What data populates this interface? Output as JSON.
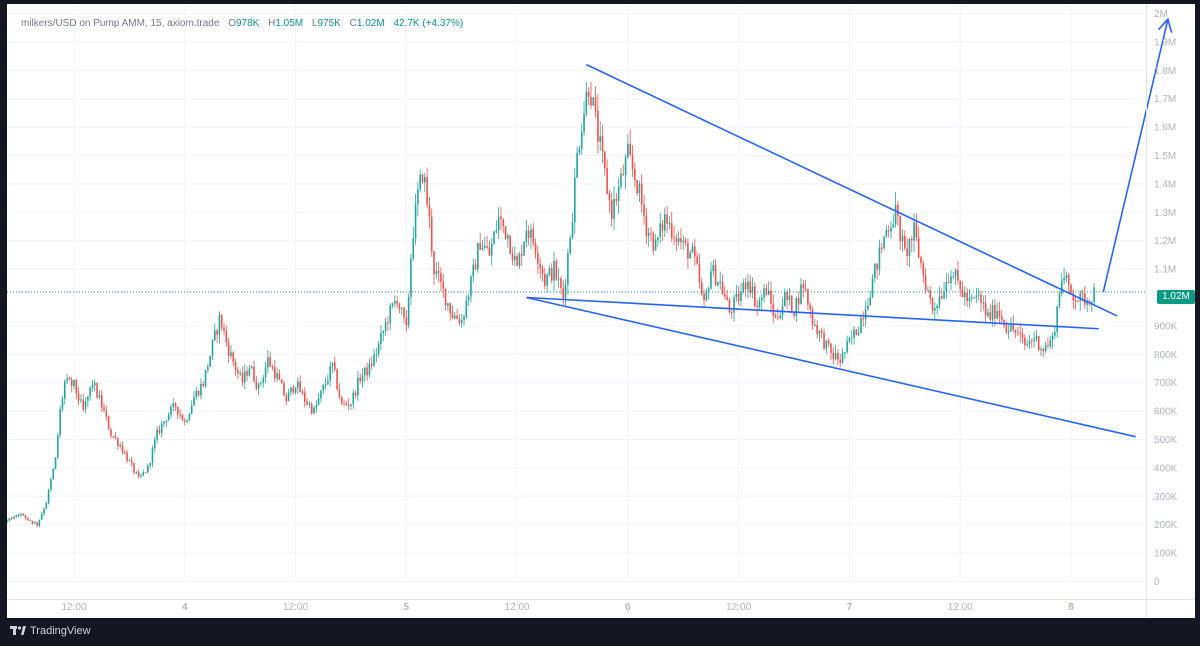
{
  "header": {
    "symbol": "milkers/USD on Pump AMM, 15, axiom.trade",
    "open_key": "O",
    "open_val": "978K",
    "high_key": "H",
    "high_val": "1.05M",
    "low_key": "L",
    "low_val": "975K",
    "close_key": "C",
    "close_val": "1.02M",
    "change": "42.7K (+4.37%)"
  },
  "current_price_label": "1.02M",
  "footer": {
    "brand": "TradingView"
  },
  "colors": {
    "up": "#26a69a",
    "down": "#ef5350",
    "trendline": "#2962ff",
    "price_line": "#0a9b82",
    "grid": "#f0f3fa",
    "axis_text": "#b2b5be"
  },
  "chart_data": {
    "type": "candlestick",
    "y_unit": "USD",
    "ylim": [
      0,
      2000000
    ],
    "y_ticks": [
      {
        "value": 2000000,
        "label": "2M"
      },
      {
        "value": 1900000,
        "label": "1.9M"
      },
      {
        "value": 1800000,
        "label": "1.8M"
      },
      {
        "value": 1700000,
        "label": "1.7M"
      },
      {
        "value": 1600000,
        "label": "1.6M"
      },
      {
        "value": 1500000,
        "label": "1.5M"
      },
      {
        "value": 1400000,
        "label": "1.4M"
      },
      {
        "value": 1300000,
        "label": "1.3M"
      },
      {
        "value": 1200000,
        "label": "1.2M"
      },
      {
        "value": 1100000,
        "label": "1.1M"
      },
      {
        "value": 900000,
        "label": "900K"
      },
      {
        "value": 800000,
        "label": "800K"
      },
      {
        "value": 700000,
        "label": "700K"
      },
      {
        "value": 600000,
        "label": "600K"
      },
      {
        "value": 500000,
        "label": "500K"
      },
      {
        "value": 400000,
        "label": "400K"
      },
      {
        "value": 300000,
        "label": "300K"
      },
      {
        "value": 200000,
        "label": "200K"
      },
      {
        "value": 100000,
        "label": "100K"
      },
      {
        "value": 0,
        "label": "0"
      }
    ],
    "x_range_hours": [
      -18,
      114
    ],
    "x_ticks": [
      {
        "hour": -12,
        "label": ":00"
      },
      {
        "hour": 0,
        "label": "12:00"
      },
      {
        "hour": 12,
        "label": "4"
      },
      {
        "hour": 24,
        "label": "12:00"
      },
      {
        "hour": 36,
        "label": "5"
      },
      {
        "hour": 48,
        "label": "12:00"
      },
      {
        "hour": 60,
        "label": "6"
      },
      {
        "hour": 72,
        "label": "12:00"
      },
      {
        "hour": 84,
        "label": "7"
      },
      {
        "hour": 96,
        "label": "12:00"
      },
      {
        "hour": 108,
        "label": "8"
      }
    ],
    "current_price": 1020000,
    "price_path": [
      [
        -18,
        250000
      ],
      [
        -17,
        150000
      ],
      [
        -16,
        140000
      ],
      [
        -15,
        200000
      ],
      [
        -13,
        270000
      ],
      [
        -12,
        240000
      ],
      [
        -11,
        210000
      ],
      [
        -9,
        220000
      ],
      [
        -8,
        200000
      ],
      [
        -6,
        240000
      ],
      [
        -4,
        200000
      ],
      [
        -3,
        280000
      ],
      [
        -2,
        430000
      ],
      [
        -1.5,
        600000
      ],
      [
        -1,
        700000
      ],
      [
        0,
        690000
      ],
      [
        1,
        600000
      ],
      [
        2,
        700000
      ],
      [
        3,
        620000
      ],
      [
        4,
        520000
      ],
      [
        5,
        480000
      ],
      [
        6,
        420000
      ],
      [
        7,
        360000
      ],
      [
        8,
        400000
      ],
      [
        9,
        520000
      ],
      [
        10,
        580000
      ],
      [
        11,
        620000
      ],
      [
        12,
        560000
      ],
      [
        13,
        650000
      ],
      [
        14,
        700000
      ],
      [
        15,
        830000
      ],
      [
        15.8,
        930000
      ],
      [
        16.6,
        830000
      ],
      [
        17.4,
        760000
      ],
      [
        18.2,
        700000
      ],
      [
        19,
        760000
      ],
      [
        20,
        680000
      ],
      [
        21,
        780000
      ],
      [
        22,
        720000
      ],
      [
        23,
        640000
      ],
      [
        24,
        700000
      ],
      [
        25,
        640000
      ],
      [
        26,
        600000
      ],
      [
        27,
        680000
      ],
      [
        28,
        760000
      ],
      [
        29,
        620000
      ],
      [
        30,
        630000
      ],
      [
        31,
        720000
      ],
      [
        32,
        750000
      ],
      [
        33,
        830000
      ],
      [
        34,
        930000
      ],
      [
        35,
        1000000
      ],
      [
        36,
        880000
      ],
      [
        36.6,
        1200000
      ],
      [
        37.2,
        1350000
      ],
      [
        37.8,
        1450000
      ],
      [
        38.4,
        1300000
      ],
      [
        39,
        1100000
      ],
      [
        40,
        1020000
      ],
      [
        41,
        940000
      ],
      [
        42,
        920000
      ],
      [
        43,
        1050000
      ],
      [
        44,
        1200000
      ],
      [
        45,
        1150000
      ],
      [
        46,
        1280000
      ],
      [
        47,
        1220000
      ],
      [
        48,
        1100000
      ],
      [
        49,
        1250000
      ],
      [
        50,
        1180000
      ],
      [
        51,
        1060000
      ],
      [
        52,
        1100000
      ],
      [
        53,
        1000000
      ],
      [
        53.5,
        1150000
      ],
      [
        54,
        1300000
      ],
      [
        54.5,
        1500000
      ],
      [
        55,
        1620000
      ],
      [
        55.8,
        1760000
      ],
      [
        56.6,
        1600000
      ],
      [
        57.4,
        1450000
      ],
      [
        58.2,
        1300000
      ],
      [
        59,
        1380000
      ],
      [
        60,
        1500000
      ],
      [
        61,
        1400000
      ],
      [
        62,
        1250000
      ],
      [
        63,
        1180000
      ],
      [
        64,
        1280000
      ],
      [
        65,
        1230000
      ],
      [
        66,
        1180000
      ],
      [
        67,
        1150000
      ],
      [
        67.6,
        1080000
      ],
      [
        68.2,
        960000
      ],
      [
        69,
        1100000
      ],
      [
        70,
        1050000
      ],
      [
        71,
        950000
      ],
      [
        72,
        1000000
      ],
      [
        73,
        1070000
      ],
      [
        74,
        970000
      ],
      [
        75,
        1030000
      ],
      [
        76,
        920000
      ],
      [
        77,
        1000000
      ],
      [
        78,
        960000
      ],
      [
        79,
        1050000
      ],
      [
        80,
        920000
      ],
      [
        81,
        860000
      ],
      [
        82,
        800000
      ],
      [
        83,
        780000
      ],
      [
        84,
        840000
      ],
      [
        85,
        900000
      ],
      [
        86,
        1000000
      ],
      [
        87,
        1120000
      ],
      [
        88,
        1240000
      ],
      [
        89,
        1300000
      ],
      [
        90,
        1150000
      ],
      [
        91,
        1230000
      ],
      [
        92,
        1080000
      ],
      [
        93,
        960000
      ],
      [
        94,
        1020000
      ],
      [
        95,
        1100000
      ],
      [
        96,
        1030000
      ],
      [
        97,
        980000
      ],
      [
        98,
        1000000
      ],
      [
        99,
        930000
      ],
      [
        100,
        960000
      ],
      [
        101,
        900000
      ],
      [
        102,
        880000
      ],
      [
        103,
        830000
      ],
      [
        104,
        860000
      ],
      [
        105,
        820000
      ],
      [
        106,
        850000
      ],
      [
        106.5,
        960000
      ],
      [
        107,
        1080000
      ],
      [
        108,
        1020000
      ],
      [
        109,
        990000
      ],
      [
        110,
        1000000
      ],
      [
        110.5,
        1020000
      ]
    ],
    "annotations": [
      {
        "type": "trendline",
        "from": [
          49,
          1000000
        ],
        "to": [
          111,
          890000
        ]
      },
      {
        "type": "trendline",
        "from": [
          55.5,
          1820000
        ],
        "to": [
          113,
          935000
        ]
      },
      {
        "type": "trendline",
        "from": [
          49,
          1000000
        ],
        "to": [
          115,
          510000
        ]
      },
      {
        "type": "arrow",
        "from": [
          111.5,
          1020000
        ],
        "to": [
          118.5,
          1980000
        ]
      }
    ]
  }
}
